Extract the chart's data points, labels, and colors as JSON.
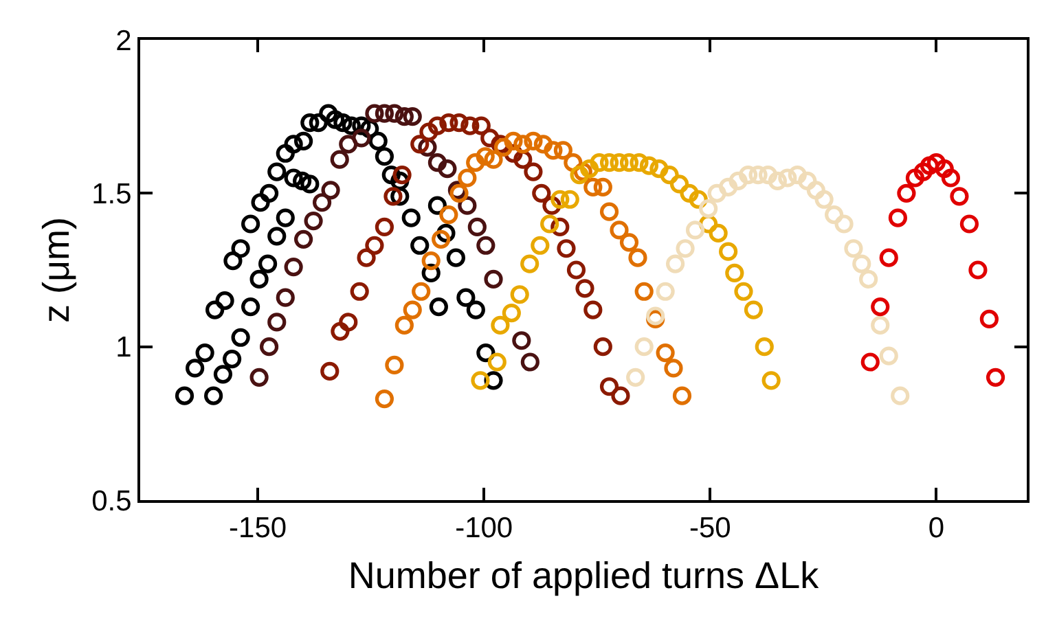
{
  "chart_data": {
    "type": "scatter",
    "xlabel": "Number of applied turns ΔLk",
    "ylabel": "z (μm)",
    "xlim": [
      -176,
      20
    ],
    "xticks": [
      -150,
      -100,
      -50,
      0
    ],
    "ylim": [
      0.5,
      2
    ],
    "yticks": [
      0.5,
      1,
      1.5,
      2
    ],
    "marker": "circle",
    "series": [
      {
        "color": "#000000",
        "x": [
          -166.2,
          -163.9,
          -161.7,
          -159.5,
          -157.3,
          -155.5,
          -153.8,
          -151.6,
          -149.4,
          -147.5,
          -145.8,
          -143.9,
          -142.1,
          -139.9,
          -138.5,
          -136.6,
          -134.4,
          -132.9,
          -131.2,
          -129.3,
          -127.1,
          -125.3,
          -159.8,
          -157.7,
          -155.7,
          -153.8,
          -151.6,
          -149.7,
          -147.8,
          -145.8,
          -143.9,
          -142.1,
          -140.2,
          -138.5,
          -123.4,
          -122.0,
          -120.5,
          -118.6,
          -118.6,
          -116.1,
          -114.2,
          -111.7,
          -110.0,
          -110.3,
          -108.4,
          -106.2,
          -104.0,
          -101.8,
          -99.6,
          -97.9
        ],
        "values": [
          0.84,
          0.93,
          0.98,
          1.12,
          1.15,
          1.28,
          1.32,
          1.4,
          1.47,
          1.5,
          1.57,
          1.63,
          1.66,
          1.67,
          1.73,
          1.73,
          1.76,
          1.74,
          1.73,
          1.72,
          1.72,
          1.71,
          0.84,
          0.91,
          0.96,
          1.03,
          1.13,
          1.22,
          1.27,
          1.36,
          1.42,
          1.55,
          1.54,
          1.53,
          1.67,
          1.62,
          1.56,
          1.54,
          1.49,
          1.42,
          1.33,
          1.24,
          1.13,
          1.46,
          1.37,
          1.29,
          1.16,
          1.12,
          0.98,
          0.89
        ]
      },
      {
        "color": "#4a1212",
        "x": [
          -149.7,
          -147.5,
          -145.8,
          -143.9,
          -142.1,
          -139.9,
          -137.7,
          -135.8,
          -133.9,
          -131.9,
          -130.0,
          -127.1,
          -124.2,
          -122.0,
          -119.8,
          -117.6,
          -115.8,
          -112.5,
          -110.3,
          -108.1,
          -105.9,
          -103.7,
          -101.5,
          -99.6,
          -97.9,
          -91.7,
          -89.8
        ],
        "values": [
          0.9,
          1.0,
          1.08,
          1.16,
          1.26,
          1.35,
          1.41,
          1.47,
          1.51,
          1.61,
          1.66,
          1.68,
          1.76,
          1.76,
          1.76,
          1.75,
          1.75,
          1.65,
          1.6,
          1.58,
          1.51,
          1.46,
          1.39,
          1.33,
          1.22,
          1.02,
          0.95
        ]
      },
      {
        "color": "#8b1a00",
        "x": [
          -134.1,
          -131.8,
          -130.0,
          -127.5,
          -126.0,
          -124.2,
          -122.0,
          -120.1,
          -118.1,
          -114.2,
          -112.2,
          -110.3,
          -107.8,
          -105.5,
          -103.1,
          -100.6,
          -98.7,
          -96.4,
          -93.5,
          -91.4,
          -89.1,
          -87.3,
          -85.0,
          -83.2,
          -81.8,
          -79.6,
          -77.7,
          -75.9,
          -73.7,
          -72.3,
          -69.8
        ],
        "values": [
          0.92,
          1.05,
          1.08,
          1.18,
          1.29,
          1.33,
          1.39,
          1.49,
          1.56,
          1.66,
          1.7,
          1.72,
          1.73,
          1.73,
          1.72,
          1.72,
          1.68,
          1.66,
          1.63,
          1.61,
          1.57,
          1.5,
          1.46,
          1.39,
          1.32,
          1.25,
          1.19,
          1.12,
          1.0,
          0.87,
          0.84
        ]
      },
      {
        "color": "#e07000",
        "x": [
          -122.0,
          -119.8,
          -117.6,
          -115.8,
          -113.9,
          -111.7,
          -109.5,
          -107.8,
          -105.5,
          -103.7,
          -101.9,
          -99.7,
          -97.9,
          -95.7,
          -93.5,
          -91.4,
          -89.1,
          -86.9,
          -84.7,
          -82.5,
          -80.3,
          -78.1,
          -75.9,
          -73.7,
          -72.3,
          -70.1,
          -67.9,
          -66.0,
          -64.6,
          -62.1,
          -59.9,
          -58.1,
          -56.2
        ],
        "values": [
          0.83,
          0.94,
          1.07,
          1.12,
          1.18,
          1.28,
          1.35,
          1.43,
          1.5,
          1.55,
          1.6,
          1.62,
          1.61,
          1.65,
          1.67,
          1.66,
          1.67,
          1.66,
          1.64,
          1.64,
          1.6,
          1.57,
          1.52,
          1.52,
          1.44,
          1.38,
          1.34,
          1.29,
          1.18,
          1.09,
          0.98,
          0.93,
          0.84
        ]
      },
      {
        "color": "#e8a800",
        "x": [
          -100.8,
          -97.1,
          -96.4,
          -93.9,
          -92.1,
          -89.9,
          -87.6,
          -85.5,
          -83.2,
          -81.0,
          -78.9,
          -76.7,
          -74.5,
          -72.3,
          -70.1,
          -67.9,
          -65.7,
          -63.5,
          -61.3,
          -59.0,
          -56.8,
          -54.6,
          -52.6,
          -50.4,
          -48.2,
          -46.0,
          -44.6,
          -42.6,
          -40.4,
          -38.0,
          -36.5
        ],
        "values": [
          0.89,
          0.95,
          1.07,
          1.11,
          1.17,
          1.27,
          1.33,
          1.4,
          1.48,
          1.48,
          1.56,
          1.58,
          1.6,
          1.6,
          1.6,
          1.6,
          1.6,
          1.59,
          1.58,
          1.56,
          1.53,
          1.5,
          1.48,
          1.4,
          1.37,
          1.31,
          1.24,
          1.18,
          1.12,
          1.0,
          0.89
        ]
      },
      {
        "color": "#f0dcb8",
        "x": [
          -66.5,
          -64.6,
          -62.1,
          -59.9,
          -57.7,
          -55.5,
          -53.3,
          -50.4,
          -48.5,
          -46.0,
          -43.8,
          -41.6,
          -39.4,
          -37.2,
          -35.1,
          -32.9,
          -30.7,
          -28.5,
          -26.6,
          -24.8,
          -22.6,
          -20.4,
          -18.3,
          -16.5,
          -15.0,
          -12.4,
          -10.5,
          -8.0
        ],
        "values": [
          0.9,
          1.0,
          1.1,
          1.18,
          1.27,
          1.32,
          1.38,
          1.45,
          1.5,
          1.52,
          1.54,
          1.56,
          1.56,
          1.56,
          1.54,
          1.55,
          1.56,
          1.54,
          1.51,
          1.48,
          1.43,
          1.4,
          1.32,
          1.27,
          1.22,
          1.07,
          0.97,
          0.84
        ]
      },
      {
        "color": "#e00000",
        "x": [
          -14.6,
          -12.4,
          -10.5,
          -8.5,
          -6.6,
          -4.7,
          -2.9,
          -1.5,
          0,
          1.8,
          3.2,
          5.1,
          7.3,
          9.2,
          11.7,
          13.1
        ],
        "values": [
          0.95,
          1.13,
          1.29,
          1.42,
          1.5,
          1.55,
          1.57,
          1.59,
          1.6,
          1.58,
          1.55,
          1.49,
          1.4,
          1.25,
          1.09,
          0.9
        ]
      }
    ]
  }
}
